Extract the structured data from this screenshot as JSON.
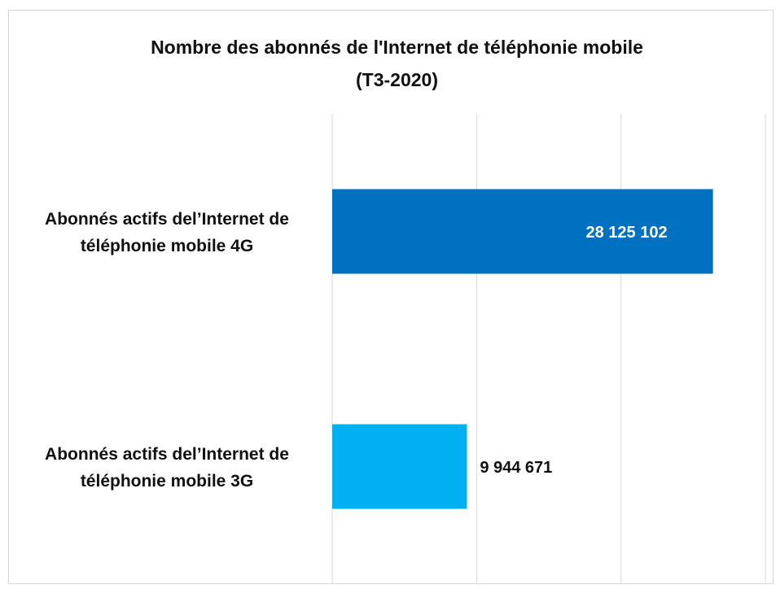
{
  "chart_data": {
    "type": "bar",
    "orientation": "horizontal",
    "title": "Nombre des abonnés de l'Internet de téléphonie mobile\n(T3-2020)",
    "categories": [
      "Abonnés actifs del’Internet de téléphonie mobile 4G",
      "Abonnés actifs del’Internet de téléphonie mobile 3G"
    ],
    "values": [
      28125102,
      9944671
    ],
    "value_labels": [
      "28 125 102",
      "9 944 671"
    ],
    "colors": [
      "#0070c0",
      "#00b0f0"
    ],
    "xlim": [
      0,
      32000000
    ],
    "xticks": [
      0,
      10667000,
      21333000,
      32000000
    ],
    "grid": true
  }
}
